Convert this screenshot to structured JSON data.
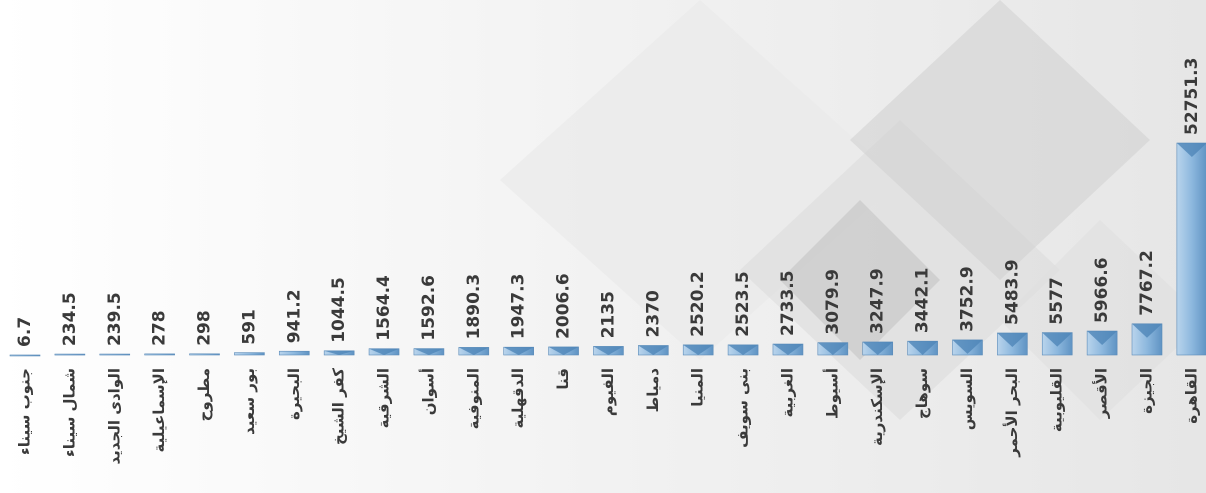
{
  "chart_data": {
    "type": "bar",
    "categories": [
      "جنوب سيناء",
      "شمال سيناء",
      "الوادى الجديد",
      "الإسماعيلية",
      "مطروح",
      "بور سعيد",
      "البحيرة",
      "كفر الشيخ",
      "الشرقية",
      "أسوان",
      "المنوفية",
      "الدقهلية",
      "قنا",
      "الفيوم",
      "دمياط",
      "المنيا",
      "بنى سويف",
      "الغربية",
      "أسيوط",
      "الإسكندرية",
      "سوهاج",
      "السويس",
      "البحر الأحمر",
      "القليوبية",
      "الأقصر",
      "الجيزة",
      "القاهرة"
    ],
    "values": [
      6.7,
      234.5,
      239.5,
      278,
      298,
      591,
      941.2,
      1044.5,
      1564.4,
      1592.6,
      1890.3,
      1947.3,
      2006.6,
      2135,
      2370,
      2520.2,
      2523.5,
      2733.5,
      3079.9,
      3247.9,
      3442.1,
      3752.9,
      5483.9,
      5577,
      5966.6,
      7767.2,
      52751.3
    ],
    "color": "#7aa9d3"
  }
}
